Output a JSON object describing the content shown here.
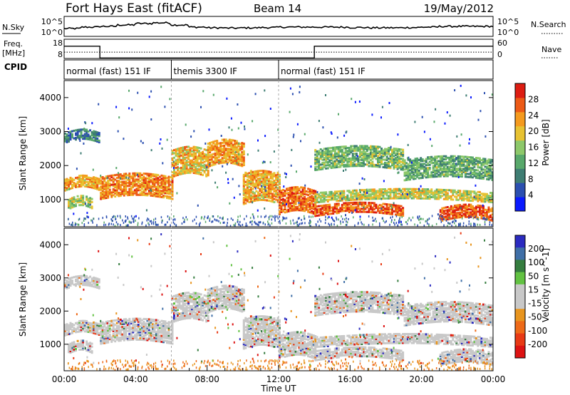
{
  "header": {
    "title": "Fort Hays East (fitACF)",
    "beam": "Beam 14",
    "date": "19/May/2012"
  },
  "noise_panel": {
    "left_label": "N.Sky",
    "right_label": "N.Search",
    "left_ticks": [
      "10^5",
      "10^0"
    ],
    "right_ticks": [
      "10^5",
      "10^0"
    ]
  },
  "freq_panel": {
    "left_label_line1": "Freq.",
    "left_label_line2": "[MHz]",
    "right_label": "Nave",
    "left_ticks": [
      "18",
      "8"
    ],
    "right_ticks": [
      "60",
      "0"
    ]
  },
  "cpid_panel": {
    "label": "CPID",
    "segments": [
      {
        "label": "normal (fast) 151 IF",
        "start_hour": 0,
        "end_hour": 6
      },
      {
        "label": "themis 3300 IF",
        "start_hour": 6,
        "end_hour": 12
      },
      {
        "label": "normal (fast) 151 IF",
        "start_hour": 12,
        "end_hour": 24
      }
    ]
  },
  "colors": {
    "power_scale": [
      "#0a1aff",
      "#2b4fb0",
      "#3e7d73",
      "#58a86b",
      "#8dc86a",
      "#e7c232",
      "#f49a1e",
      "#ec5a16",
      "#dd1d12"
    ],
    "velocity_scale": [
      "#2b2bc0",
      "#3f6fa7",
      "#357d3f",
      "#62c242",
      "#c8c8c8",
      "#c8c8c8",
      "#e8951f",
      "#ee6a18",
      "#e83a15",
      "#dd1313"
    ],
    "mode_change_line": "#aaaaaa"
  },
  "chart_data": [
    {
      "type": "heatmap",
      "name": "power",
      "ylabel": "Slant Range [km]",
      "yticks": [
        1000,
        2000,
        3000,
        4000
      ],
      "ylim": [
        200,
        4500
      ],
      "xlim": [
        0,
        24
      ],
      "colorbar_label": "Power [dB]",
      "colorbar_ticks": [
        4,
        8,
        12,
        16,
        20,
        24,
        28
      ],
      "colorbar_range": [
        0,
        32
      ],
      "echo_bands": [
        {
          "start_hour": 0.0,
          "end_hour": 2.0,
          "range_start_km": 1300,
          "range_end_km": 1650,
          "power_db": 22
        },
        {
          "start_hour": 0.0,
          "end_hour": 2.0,
          "range_start_km": 2700,
          "range_end_km": 3000,
          "power_db": 9
        },
        {
          "start_hour": 0.2,
          "end_hour": 1.6,
          "range_start_km": 750,
          "range_end_km": 1050,
          "power_db": 17
        },
        {
          "start_hour": 2.0,
          "end_hour": 6.0,
          "range_start_km": 1050,
          "range_end_km": 1700,
          "power_db": 24
        },
        {
          "start_hour": 6.0,
          "end_hour": 8.0,
          "range_start_km": 1700,
          "range_end_km": 2500,
          "power_db": 21
        },
        {
          "start_hour": 8.0,
          "end_hour": 10.0,
          "range_start_km": 2000,
          "range_end_km": 2700,
          "power_db": 23
        },
        {
          "start_hour": 10.0,
          "end_hour": 12.0,
          "range_start_km": 900,
          "range_end_km": 1800,
          "power_db": 22
        },
        {
          "start_hour": 12.0,
          "end_hour": 14.0,
          "range_start_km": 600,
          "range_end_km": 1300,
          "power_db": 26
        },
        {
          "start_hour": 14.0,
          "end_hour": 19.0,
          "range_start_km": 1900,
          "range_end_km": 2500,
          "power_db": 14
        },
        {
          "start_hour": 14.0,
          "end_hour": 19.0,
          "range_start_km": 550,
          "range_end_km": 850,
          "power_db": 27
        },
        {
          "start_hour": 14.0,
          "end_hour": 24.0,
          "range_start_km": 950,
          "range_end_km": 1250,
          "power_db": 18
        },
        {
          "start_hour": 19.0,
          "end_hour": 24.0,
          "range_start_km": 1600,
          "range_end_km": 2200,
          "power_db": 13
        },
        {
          "start_hour": 21.0,
          "end_hour": 24.0,
          "range_start_km": 400,
          "range_end_km": 800,
          "power_db": 27
        }
      ]
    },
    {
      "type": "heatmap",
      "name": "velocity",
      "ylabel": "Slant Range [km]",
      "yticks": [
        1000,
        2000,
        3000,
        4000
      ],
      "ylim": [
        200,
        4500
      ],
      "xlim": [
        0,
        24
      ],
      "xlabel": "Time UT",
      "xticks": [
        "00:00",
        "04:00",
        "08:00",
        "12:00",
        "16:00",
        "20:00",
        "00:00"
      ],
      "colorbar_label": "Velocity [m s^-1]",
      "colorbar_ticks": [
        200,
        100,
        50,
        15,
        -15,
        -50,
        -100,
        -200
      ],
      "colorbar_range": [
        -250,
        250
      ]
    }
  ],
  "noise_series": {
    "sky_level_fraction": [
      0.35,
      0.45,
      0.5,
      0.6,
      0.7,
      0.75,
      0.6,
      0.45,
      0.4,
      0.38,
      0.4,
      0.42,
      0.45,
      0.45,
      0.45,
      0.45,
      0.42,
      0.4,
      0.4,
      0.42,
      0.45,
      0.5,
      0.5,
      0.5
    ]
  },
  "freq_series": {
    "steps": [
      {
        "start_hour": 0,
        "end_hour": 2.0,
        "freq_mhz": 16.2
      },
      {
        "start_hour": 2.0,
        "end_hour": 14.0,
        "freq_mhz": 10.1
      },
      {
        "start_hour": 14.0,
        "end_hour": 24,
        "freq_mhz": 16.2
      }
    ],
    "nave_dotted_fraction": 0.33
  }
}
